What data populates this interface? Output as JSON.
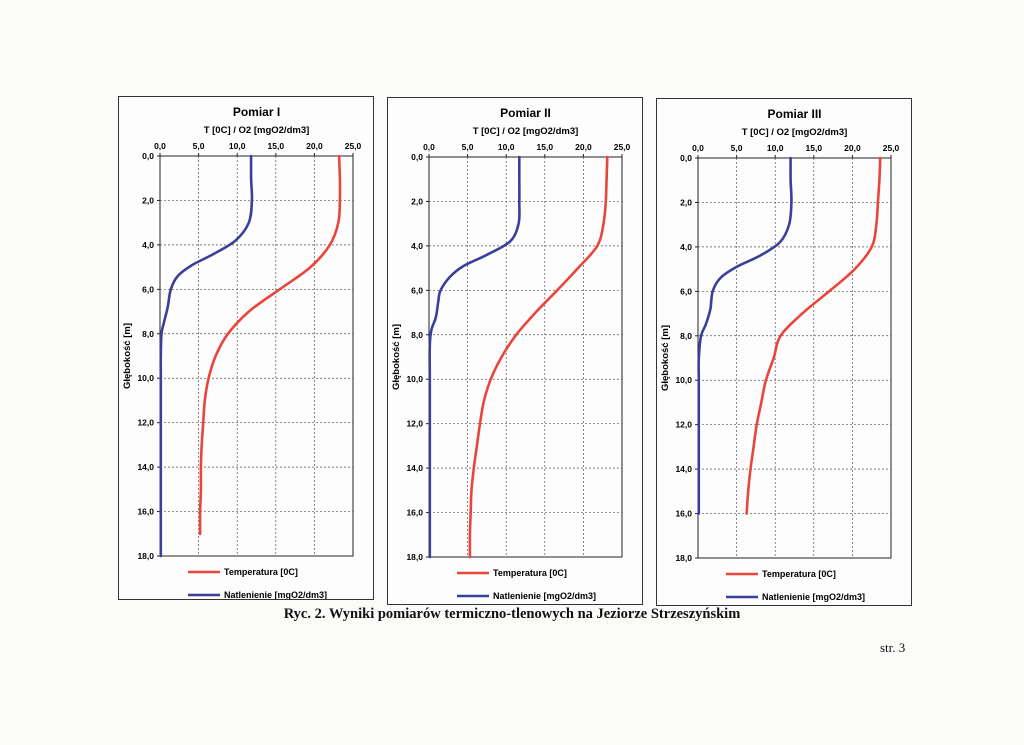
{
  "caption": "Ryc. 2. Wyniki pomiarów termiczno-tlenowych na Jeziorze Strzeszyńskim",
  "page_number": "str. 3",
  "colors": {
    "temperature": "#e8453c",
    "oxygen": "#3c3f9a",
    "grid": "#555555"
  },
  "chart_data": [
    {
      "type": "line",
      "title": "Pomiar I",
      "xlabel": "T [0C] / O2 [mgO2/dm3]",
      "ylabel": "Głębokość [m]",
      "x_ticks": [
        "0,0",
        "5,0",
        "10,0",
        "15,0",
        "20,0",
        "25,0"
      ],
      "y_ticks": [
        "0,0",
        "2,0",
        "4,0",
        "6,0",
        "8,0",
        "10,0",
        "12,0",
        "14,0",
        "16,0",
        "18,0"
      ],
      "xlim": [
        0,
        25
      ],
      "ylim": [
        0,
        18
      ],
      "grid": true,
      "legend": "bottom",
      "series": [
        {
          "name": "Temperatura [0C]",
          "color": "temperature",
          "points": [
            [
              23.2,
              0
            ],
            [
              23.3,
              1
            ],
            [
              23.3,
              2
            ],
            [
              23.1,
              3
            ],
            [
              22,
              4
            ],
            [
              19.5,
              5
            ],
            [
              15.5,
              6
            ],
            [
              11.5,
              7
            ],
            [
              8.8,
              8
            ],
            [
              7.2,
              9
            ],
            [
              6.3,
              10
            ],
            [
              5.8,
              11
            ],
            [
              5.6,
              12
            ],
            [
              5.4,
              13
            ],
            [
              5.3,
              14
            ],
            [
              5.3,
              15
            ],
            [
              5.2,
              16
            ],
            [
              5.2,
              17
            ]
          ]
        },
        {
          "name": "Natlenienie [mgO2/dm3]",
          "color": "oxygen",
          "points": [
            [
              11.8,
              0
            ],
            [
              11.8,
              1
            ],
            [
              11.9,
              2
            ],
            [
              11.5,
              3
            ],
            [
              9.8,
              3.8
            ],
            [
              7,
              4.4
            ],
            [
              4.2,
              4.9
            ],
            [
              2.3,
              5.4
            ],
            [
              1.4,
              6
            ],
            [
              1,
              6.8
            ],
            [
              0.5,
              7.5
            ],
            [
              0.2,
              8
            ],
            [
              0.1,
              9
            ],
            [
              0.1,
              10
            ],
            [
              0.1,
              12
            ],
            [
              0.1,
              14
            ],
            [
              0.1,
              16
            ],
            [
              0.1,
              18
            ]
          ]
        }
      ]
    },
    {
      "type": "line",
      "title": "Pomiar II",
      "xlabel": "T [0C] / O2 [mgO2/dm3]",
      "ylabel": "Głębokość [m]",
      "x_ticks": [
        "0,0",
        "5,0",
        "10,0",
        "15,0",
        "20,0",
        "25,0"
      ],
      "y_ticks": [
        "0,0",
        "2,0",
        "4,0",
        "6,0",
        "8,0",
        "10,0",
        "12,0",
        "14,0",
        "16,0",
        "18,0"
      ],
      "xlim": [
        0,
        25
      ],
      "ylim": [
        0,
        18
      ],
      "grid": true,
      "legend": "bottom",
      "series": [
        {
          "name": "Temperatura [0C]",
          "color": "temperature",
          "points": [
            [
              23.1,
              0
            ],
            [
              23,
              1
            ],
            [
              22.9,
              2
            ],
            [
              22.6,
              3
            ],
            [
              21.8,
              4
            ],
            [
              19.3,
              5
            ],
            [
              16.6,
              6
            ],
            [
              13.8,
              7
            ],
            [
              11.3,
              8
            ],
            [
              9.4,
              9
            ],
            [
              8,
              10
            ],
            [
              7.1,
              11
            ],
            [
              6.6,
              12
            ],
            [
              6.2,
              13
            ],
            [
              5.8,
              14
            ],
            [
              5.5,
              15
            ],
            [
              5.4,
              16
            ],
            [
              5.3,
              17
            ],
            [
              5.3,
              18
            ]
          ]
        },
        {
          "name": "Natlenienie [mgO2/dm3]",
          "color": "oxygen",
          "points": [
            [
              11.7,
              0
            ],
            [
              11.7,
              1
            ],
            [
              11.7,
              2
            ],
            [
              11.6,
              3
            ],
            [
              10.5,
              3.8
            ],
            [
              7.5,
              4.4
            ],
            [
              4.5,
              4.9
            ],
            [
              2.7,
              5.4
            ],
            [
              1.5,
              6
            ],
            [
              1.2,
              6.5
            ],
            [
              0.9,
              7.2
            ],
            [
              0.3,
              7.8
            ],
            [
              0.1,
              8.5
            ],
            [
              0.1,
              10
            ],
            [
              0.1,
              12
            ],
            [
              0.1,
              14
            ],
            [
              0.1,
              16
            ],
            [
              0.1,
              18
            ]
          ]
        }
      ]
    },
    {
      "type": "line",
      "title": "Pomiar III",
      "xlabel": "T [0C] / O2 [mgO2/dm3]",
      "ylabel": "Głębokość [m]",
      "x_ticks": [
        "0,0",
        "5,0",
        "10,0",
        "15,0",
        "20,0",
        "25,0"
      ],
      "y_ticks": [
        "0,0",
        "2,0",
        "4,0",
        "6,0",
        "8,0",
        "10,0",
        "12,0",
        "14,0",
        "16,0",
        "18,0"
      ],
      "xlim": [
        0,
        25
      ],
      "ylim": [
        0,
        18
      ],
      "grid": true,
      "legend": "bottom",
      "series": [
        {
          "name": "Temperatura [0C]",
          "color": "temperature",
          "points": [
            [
              23.6,
              0
            ],
            [
              23.5,
              1
            ],
            [
              23.3,
              2
            ],
            [
              23.1,
              3
            ],
            [
              22.5,
              4
            ],
            [
              20.3,
              5
            ],
            [
              17,
              6
            ],
            [
              13.5,
              7
            ],
            [
              10.7,
              8
            ],
            [
              9.8,
              9
            ],
            [
              8.8,
              10
            ],
            [
              8.2,
              11
            ],
            [
              7.6,
              12
            ],
            [
              7.2,
              13
            ],
            [
              6.8,
              14
            ],
            [
              6.5,
              15
            ],
            [
              6.3,
              16
            ]
          ]
        },
        {
          "name": "Natlenienie [mgO2/dm3]",
          "color": "oxygen",
          "points": [
            [
              12,
              0
            ],
            [
              12,
              1
            ],
            [
              12.1,
              2
            ],
            [
              11.8,
              3
            ],
            [
              10.6,
              3.8
            ],
            [
              8,
              4.4
            ],
            [
              5,
              4.9
            ],
            [
              2.9,
              5.4
            ],
            [
              1.9,
              6
            ],
            [
              1.6,
              6.8
            ],
            [
              1,
              7.5
            ],
            [
              0.4,
              8
            ],
            [
              0.1,
              9
            ],
            [
              0.1,
              10
            ],
            [
              0.1,
              12
            ],
            [
              0.1,
              14
            ],
            [
              0.1,
              16
            ]
          ]
        }
      ]
    }
  ]
}
